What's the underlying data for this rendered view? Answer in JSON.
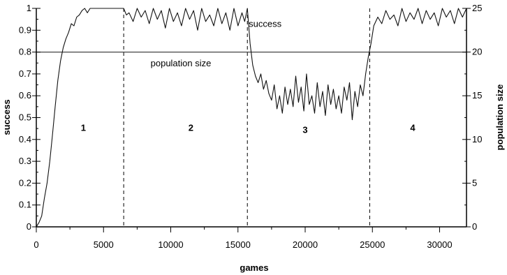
{
  "chart_data": {
    "type": "line",
    "xlabel": "games",
    "ylabel": "success",
    "y2label": "population size",
    "xlim": [
      0,
      32000
    ],
    "ylim": [
      0,
      1
    ],
    "y2lim": [
      0,
      25
    ],
    "x_ticks": [
      0,
      5000,
      10000,
      15000,
      20000,
      25000,
      30000
    ],
    "x_tick_labels": [
      "0",
      "5000",
      "10000",
      "15000",
      "20000",
      "25000",
      "30000"
    ],
    "y_ticks": [
      0,
      0.1,
      0.2,
      0.3,
      0.4,
      0.5,
      0.6,
      0.7,
      0.8,
      0.9,
      1
    ],
    "y_tick_labels": [
      "0",
      "0.1",
      "0.2",
      "0.3",
      "0.4",
      "0.5",
      "0.6",
      "0.7",
      "0.8",
      "0.9",
      "1"
    ],
    "y2_ticks": [
      0,
      5,
      10,
      15,
      20,
      25
    ],
    "y2_tick_labels": [
      "0",
      "5",
      "10",
      "15",
      "20",
      "25"
    ],
    "grid": false,
    "phase_boundaries": [
      6500,
      15700,
      24800
    ],
    "phase_labels": [
      {
        "text": "1",
        "x": 3500,
        "y": 0.44
      },
      {
        "text": "2",
        "x": 11500,
        "y": 0.44
      },
      {
        "text": "3",
        "x": 20000,
        "y": 0.43
      },
      {
        "text": "4",
        "x": 28000,
        "y": 0.44
      }
    ],
    "annotations": [
      {
        "text": "success",
        "x": 15800,
        "y": 0.915
      },
      {
        "text": "population size",
        "x": 8500,
        "y": 0.735
      }
    ],
    "series": [
      {
        "axis": "right",
        "x": [
          0,
          32000
        ],
        "values": [
          20,
          20
        ]
      },
      {
        "axis": "left",
        "x": [
          0,
          200,
          400,
          600,
          800,
          1000,
          1200,
          1400,
          1600,
          1800,
          2000,
          2200,
          2400,
          2600,
          2800,
          3000,
          3200,
          3400,
          3600,
          3800,
          4000,
          4500,
          5000,
          5500,
          6000,
          6500,
          6700,
          6900,
          7200,
          7500,
          7800,
          8100,
          8400,
          8700,
          9000,
          9300,
          9600,
          9900,
          10200,
          10500,
          10800,
          11100,
          11400,
          11700,
          12000,
          12300,
          12600,
          12900,
          13200,
          13500,
          13800,
          14100,
          14400,
          14700,
          15000,
          15300,
          15500,
          15700,
          15900,
          16100,
          16300,
          16500,
          16700,
          16900,
          17100,
          17300,
          17500,
          17700,
          17900,
          18100,
          18300,
          18500,
          18700,
          18900,
          19100,
          19300,
          19500,
          19700,
          19900,
          20100,
          20300,
          20500,
          20700,
          20900,
          21100,
          21300,
          21500,
          21700,
          21900,
          22100,
          22300,
          22500,
          22700,
          22900,
          23100,
          23300,
          23500,
          23700,
          23900,
          24100,
          24300,
          24500,
          24700,
          24900,
          25100,
          25400,
          25700,
          26000,
          26300,
          26600,
          26900,
          27200,
          27500,
          27800,
          28100,
          28400,
          28700,
          29000,
          29300,
          29600,
          29900,
          30200,
          30500,
          30800,
          31100,
          31400,
          31700,
          32000
        ],
        "values": [
          0,
          0.02,
          0.05,
          0.13,
          0.2,
          0.3,
          0.42,
          0.55,
          0.67,
          0.76,
          0.82,
          0.86,
          0.89,
          0.93,
          0.92,
          0.96,
          0.97,
          0.99,
          1.0,
          0.98,
          1.0,
          1.0,
          1.0,
          1.0,
          1.0,
          1.0,
          0.97,
          0.98,
          0.94,
          1.0,
          0.96,
          0.99,
          0.93,
          1.0,
          0.95,
          0.99,
          0.91,
          1.0,
          0.94,
          0.98,
          0.92,
          1.0,
          0.95,
          0.99,
          0.9,
          1.0,
          0.94,
          0.97,
          0.92,
          1.0,
          0.93,
          0.98,
          0.9,
          1.0,
          0.92,
          0.98,
          0.94,
          1.0,
          0.84,
          0.74,
          0.69,
          0.66,
          0.7,
          0.63,
          0.67,
          0.61,
          0.58,
          0.65,
          0.54,
          0.6,
          0.52,
          0.64,
          0.56,
          0.63,
          0.55,
          0.69,
          0.57,
          0.64,
          0.53,
          0.7,
          0.56,
          0.6,
          0.52,
          0.66,
          0.55,
          0.62,
          0.51,
          0.65,
          0.56,
          0.63,
          0.54,
          0.6,
          0.52,
          0.64,
          0.58,
          0.66,
          0.49,
          0.62,
          0.55,
          0.65,
          0.6,
          0.7,
          0.78,
          0.84,
          0.92,
          0.96,
          0.93,
          0.99,
          0.95,
          0.97,
          0.92,
          1.0,
          0.94,
          0.98,
          0.95,
          1.0,
          0.93,
          0.99,
          0.95,
          0.98,
          0.92,
          1.0,
          0.96,
          0.99,
          0.93,
          1.0,
          0.96,
          1.0
        ]
      }
    ]
  }
}
